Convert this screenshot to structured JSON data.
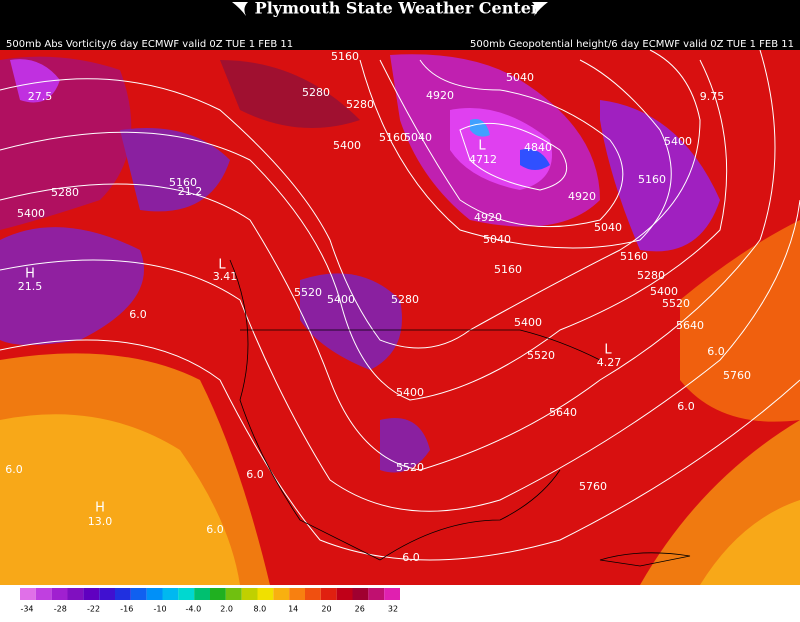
{
  "header": {
    "title": "Plymouth State Weather Center",
    "left_caption": "500mb Abs Vorticity/6 day ECMWF  valid 0Z TUE 1 FEB 11",
    "right_caption": "500mb Geopotential height/6 day ECMWF  valid 0Z TUE 1 FEB 11"
  },
  "map": {
    "height_labels": [
      "5160",
      "5280",
      "5280",
      "5400",
      "5160",
      "5040",
      "4920",
      "5040",
      "4712",
      "4840",
      "4920",
      "4920",
      "5040",
      "5040",
      "5160",
      "5160",
      "5160",
      "5280",
      "5400",
      "5400",
      "5520",
      "5640",
      "5280",
      "5400",
      "5160",
      "5520",
      "5400",
      "5280",
      "5400",
      "5520",
      "5400",
      "5640",
      "5520",
      "5760",
      "5760"
    ],
    "vorticity_labels": [
      "27.5",
      "21.2",
      "21.5",
      "3.41",
      "4.27",
      "6.0",
      "6.0",
      "6.0",
      "6.0",
      "6.0",
      "6.0",
      "6.0",
      "13.0",
      "9.75"
    ],
    "pressure_centers": [
      "H",
      "L",
      "L",
      "H",
      "L"
    ]
  },
  "colorbar": {
    "labels": [
      "-34",
      "-28",
      "-22",
      "-16",
      "-10",
      "-4.0",
      "2.0",
      "8.0",
      "14",
      "20",
      "26",
      "32"
    ]
  }
}
